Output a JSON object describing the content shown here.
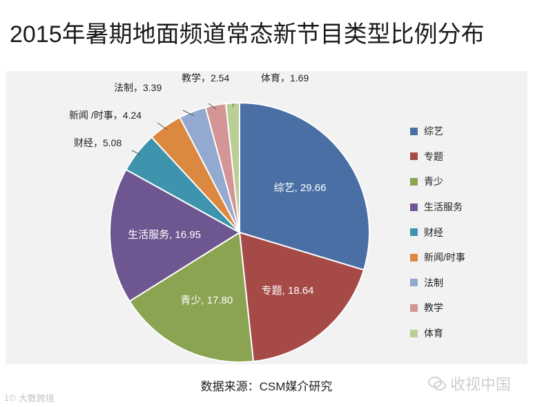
{
  "title": "2015年暑期地面频道常态新节目类型比例分布",
  "source": "数据来源：CSM媒介研究",
  "watermark_right": "收视中国",
  "watermark_left": "大数跨境",
  "watermark_left_prefix": "1©",
  "chart_data": {
    "type": "pie",
    "title": "2015年暑期地面频道常态新节目类型比例分布",
    "categories": [
      "综艺",
      "专题",
      "青少",
      "生活服务",
      "财经",
      "新闻/时事",
      "法制",
      "教学",
      "体育"
    ],
    "values": [
      29.66,
      18.64,
      17.8,
      16.95,
      5.08,
      4.24,
      3.39,
      2.54,
      1.69
    ],
    "labels": [
      "综艺, 29.66",
      "专题, 18.64",
      "青少, 17.80",
      "生活服务, 16.95",
      "财经，5.08",
      "新闻 /时事，4.24",
      "法制，3.39",
      "教学，2.54",
      "体育，1.69"
    ],
    "colors": [
      "#4a6fa5",
      "#a54a47",
      "#8aa452",
      "#6e5690",
      "#3e94ad",
      "#db8840",
      "#93a9cf",
      "#d39596",
      "#b9cf95"
    ],
    "legend": "right"
  }
}
